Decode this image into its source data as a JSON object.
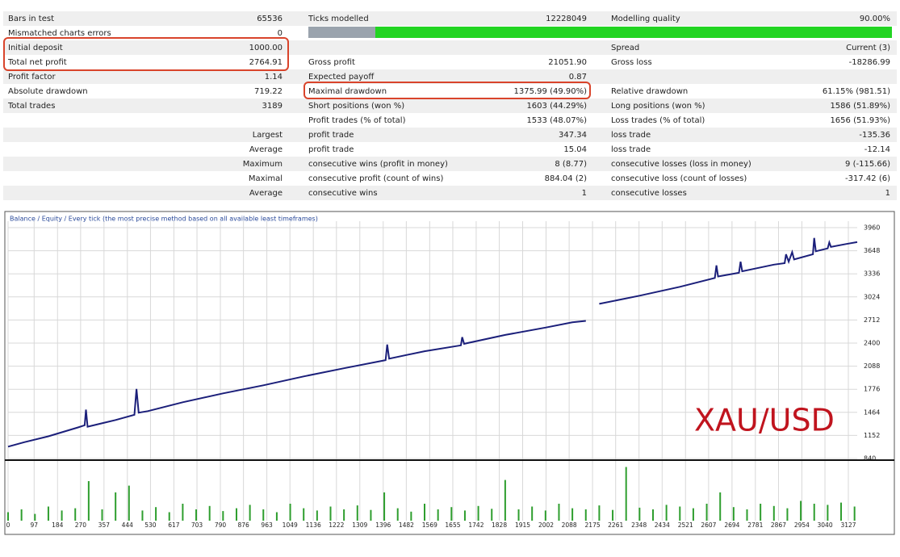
{
  "report": {
    "rows": [
      [
        "Bars in test",
        "65536",
        "Ticks modelled",
        "12228049",
        "Modelling quality",
        "90.00%"
      ],
      [
        "Mismatched charts errors",
        "0",
        null,
        null,
        null,
        null
      ],
      [
        "Initial deposit",
        "1000.00",
        null,
        null,
        "Spread",
        "Current (3)"
      ],
      [
        "Total net profit",
        "2764.91",
        "Gross profit",
        "21051.90",
        "Gross loss",
        "-18286.99"
      ],
      [
        "Profit factor",
        "1.14",
        "Expected payoff",
        "0.87",
        null,
        null
      ],
      [
        "Absolute drawdown",
        "719.22",
        "Maximal drawdown",
        "1375.99 (49.90%)",
        "Relative drawdown",
        "61.15% (981.51)"
      ],
      [
        "Total trades",
        "3189",
        "Short positions (won %)",
        "1603 (44.29%)",
        "Long positions (won %)",
        "1586 (51.89%)"
      ],
      [
        null,
        null,
        "Profit trades (% of total)",
        "1533 (48.07%)",
        "Loss trades (% of total)",
        "1656 (51.93%)"
      ],
      [
        null,
        "Largest",
        "profit trade",
        "347.34",
        "loss trade",
        "-135.36"
      ],
      [
        null,
        "Average",
        "profit trade",
        "15.04",
        "loss trade",
        "-12.14"
      ],
      [
        null,
        "Maximum",
        "consecutive wins (profit in money)",
        "8 (8.77)",
        "consecutive losses (loss in money)",
        "9 (-115.66)"
      ],
      [
        null,
        "Maximal",
        "consecutive profit (count of wins)",
        "884.04 (2)",
        "consecutive loss (count of losses)",
        "-317.42 (6)"
      ],
      [
        null,
        "Average",
        "consecutive wins",
        "1",
        "consecutive losses",
        "1"
      ]
    ]
  },
  "chart_data": {
    "type": "line",
    "title": "Balance / Equity / Every tick (the most precise method based on all available least timeframes)",
    "annotation": "XAU/USD",
    "xlim": [
      0,
      3160
    ],
    "xticks": [
      0,
      97,
      184,
      270,
      357,
      444,
      530,
      617,
      703,
      790,
      876,
      963,
      1049,
      1136,
      1222,
      1309,
      1396,
      1482,
      1569,
      1655,
      1742,
      1828,
      1915,
      2002,
      2088,
      2175,
      2261,
      2348,
      2434,
      2521,
      2607,
      2694,
      2781,
      2867,
      2954,
      3040,
      3127
    ],
    "ylim": [
      840,
      3960
    ],
    "yticks": [
      840,
      1152,
      1464,
      1776,
      2088,
      2400,
      2712,
      3024,
      3336,
      3648,
      3960
    ],
    "grid": true,
    "series": [
      {
        "color": "#1b1f7a",
        "x": [
          0,
          60,
          150,
          260,
          285,
          290,
          296,
          400,
          470,
          478,
          486,
          520,
          650,
          800,
          950,
          1100,
          1250,
          1405,
          1411,
          1418,
          1550,
          1685,
          1690,
          1697,
          1850,
          2000,
          2100,
          2150,
          2175,
          2200,
          2350,
          2500,
          2630,
          2636,
          2642,
          2720,
          2726,
          2732,
          2850,
          2890,
          2895,
          2905,
          2918,
          2925,
          2995,
          3000,
          3006,
          3050,
          3056,
          3062,
          3120,
          3160
        ],
        "values": [
          1000,
          1060,
          1140,
          1260,
          1290,
          1500,
          1270,
          1360,
          1430,
          1780,
          1460,
          1480,
          1600,
          1720,
          1830,
          1950,
          2060,
          2170,
          2380,
          2190,
          2290,
          2370,
          2480,
          2390,
          2510,
          2610,
          2680,
          2700,
          null,
          2930,
          3040,
          3160,
          3280,
          3450,
          3300,
          3350,
          3500,
          3370,
          3460,
          3480,
          3600,
          3500,
          3630,
          3530,
          3600,
          3820,
          3640,
          3680,
          3760,
          3700,
          3740,
          3765
        ]
      }
    ],
    "volume": {
      "color": "#2e9e2e",
      "ylim": [
        0,
        1
      ],
      "x": [
        0,
        50,
        100,
        150,
        200,
        250,
        300,
        350,
        400,
        450,
        500,
        550,
        600,
        650,
        700,
        750,
        800,
        850,
        900,
        950,
        1000,
        1050,
        1100,
        1150,
        1200,
        1250,
        1300,
        1350,
        1400,
        1450,
        1500,
        1550,
        1600,
        1650,
        1700,
        1750,
        1800,
        1850,
        1900,
        1950,
        2000,
        2050,
        2100,
        2150,
        2200,
        2250,
        2300,
        2350,
        2400,
        2450,
        2500,
        2550,
        2600,
        2650,
        2700,
        2750,
        2800,
        2850,
        2900,
        2950,
        3000,
        3050,
        3100,
        3150
      ],
      "values": [
        0.15,
        0.2,
        0.12,
        0.25,
        0.18,
        0.22,
        0.7,
        0.2,
        0.5,
        0.62,
        0.18,
        0.24,
        0.15,
        0.3,
        0.2,
        0.26,
        0.17,
        0.22,
        0.28,
        0.2,
        0.15,
        0.3,
        0.22,
        0.18,
        0.25,
        0.2,
        0.27,
        0.19,
        0.5,
        0.22,
        0.16,
        0.3,
        0.2,
        0.24,
        0.18,
        0.26,
        0.21,
        0.72,
        0.2,
        0.25,
        0.18,
        0.3,
        0.22,
        0.2,
        0.27,
        0.19,
        0.95,
        0.23,
        0.2,
        0.28,
        0.25,
        0.22,
        0.3,
        0.5,
        0.24,
        0.2,
        0.3,
        0.26,
        0.22,
        0.35,
        0.3,
        0.28,
        0.32,
        0.25
      ]
    }
  }
}
